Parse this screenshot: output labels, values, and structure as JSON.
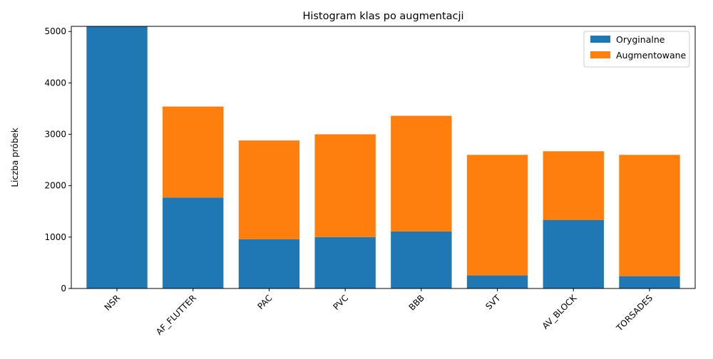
{
  "chart_data": {
    "type": "bar",
    "stacked": true,
    "title": "Histogram klas po augmentacji",
    "xlabel": "",
    "ylabel": "Liczba próbek",
    "categories": [
      "NSR",
      "AF_FLUTTER",
      "PAC",
      "PVC",
      "BBB",
      "SVT",
      "AV_BLOCK",
      "TORSADES"
    ],
    "series": [
      {
        "name": "Oryginalne",
        "color": "#1f77b4",
        "values": [
          5100,
          1770,
          960,
          1000,
          1110,
          255,
          1335,
          240
        ]
      },
      {
        "name": "Augmentowane",
        "color": "#ff7f0e",
        "values": [
          0,
          1770,
          1920,
          2000,
          2250,
          2345,
          1335,
          2360
        ]
      }
    ],
    "ylim": [
      0,
      5100
    ],
    "yticks": [
      0,
      1000,
      2000,
      3000,
      4000,
      5000
    ],
    "legend_position": "top-right",
    "grid": false
  }
}
